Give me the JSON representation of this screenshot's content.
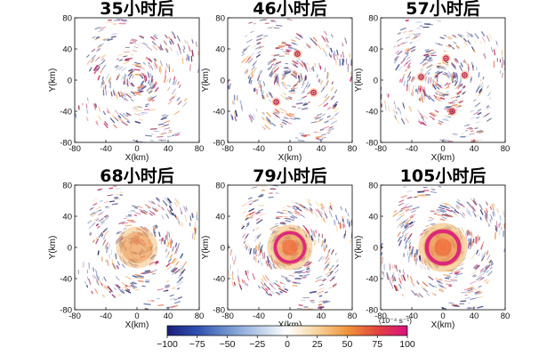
{
  "chart_data": [
    {
      "type": "heatmap",
      "title": "35小时后",
      "xlabel": "X(km)",
      "ylabel": "Y(km)",
      "xlim": [
        -80,
        80
      ],
      "ylim": [
        -80,
        80
      ],
      "xticks": [
        "-80",
        "-40",
        "0",
        "40",
        "80"
      ],
      "yticks": [
        "80",
        "40",
        "0",
        "-40",
        "-80"
      ]
    },
    {
      "type": "heatmap",
      "title": "46小时后",
      "xlabel": "X(km)",
      "ylabel": "Y(km)",
      "xlim": [
        -80,
        80
      ],
      "ylim": [
        -80,
        80
      ],
      "xticks": [
        "-80",
        "-40",
        "0",
        "40",
        "80"
      ],
      "yticks": [
        "80",
        "40",
        "0",
        "-40",
        "-80"
      ]
    },
    {
      "type": "heatmap",
      "title": "57小时后",
      "xlabel": "X(km)",
      "ylabel": "Y(km)",
      "xlim": [
        -80,
        80
      ],
      "ylim": [
        -80,
        80
      ],
      "xticks": [
        "-80",
        "-40",
        "0",
        "40",
        "80"
      ],
      "yticks": [
        "80",
        "40",
        "0",
        "-40",
        "-80"
      ]
    },
    {
      "type": "heatmap",
      "title": "68小时后",
      "xlabel": "X(km)",
      "ylabel": "Y(km)",
      "xlim": [
        -80,
        80
      ],
      "ylim": [
        -80,
        80
      ],
      "xticks": [
        "-80",
        "-40",
        "0",
        "40",
        "80"
      ],
      "yticks": [
        "80",
        "40",
        "0",
        "-40",
        "-80"
      ]
    },
    {
      "type": "heatmap",
      "title": "79小时后",
      "xlabel": "X(km)",
      "ylabel": "Y(km)",
      "xlim": [
        -80,
        80
      ],
      "ylim": [
        -80,
        80
      ],
      "xticks": [
        "-80",
        "-40",
        "0",
        "40",
        "80"
      ],
      "yticks": [
        "80",
        "40",
        "0",
        "-40",
        "-80"
      ]
    },
    {
      "type": "heatmap",
      "title": "105小时后",
      "xlabel": "X(km)",
      "ylabel": "Y(km)",
      "xlim": [
        -80,
        80
      ],
      "ylim": [
        -80,
        80
      ],
      "xticks": [
        "-80",
        "-40",
        "0",
        "40",
        "80"
      ],
      "yticks": [
        "80",
        "40",
        "0",
        "-40",
        "-80"
      ]
    }
  ],
  "colorbar": {
    "units": "(10⁻⁴ s⁻¹)",
    "range": [
      -100,
      100
    ],
    "ticks": [
      "−100",
      "−75",
      "−50",
      "−25",
      "0",
      "25",
      "50",
      "75",
      "100"
    ],
    "colors": [
      "#1a1f7a",
      "#2f4fb0",
      "#6f93cf",
      "#b7cbe8",
      "#ffffff",
      "#f6d39a",
      "#f0953a",
      "#e2443e",
      "#d8127f"
    ]
  }
}
